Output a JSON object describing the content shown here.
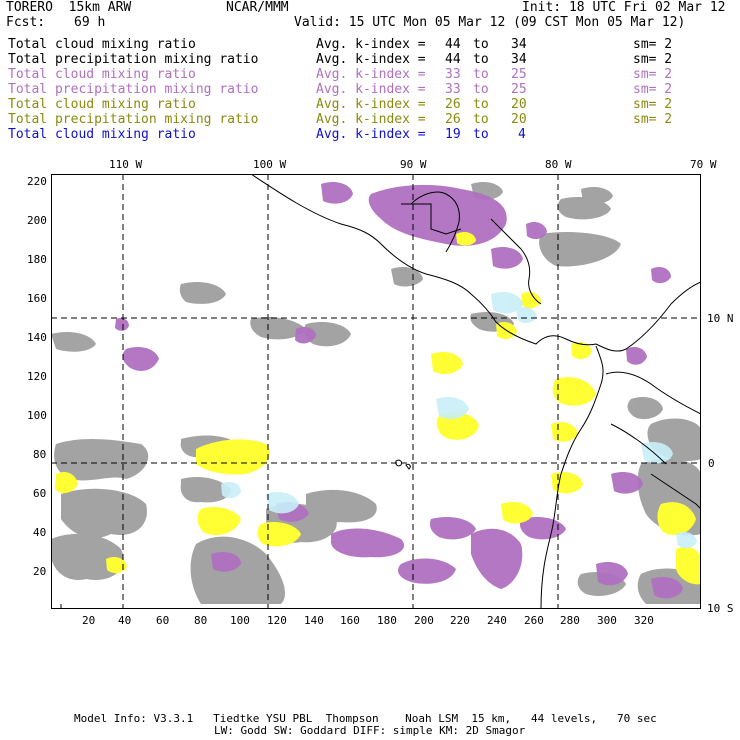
{
  "header": {
    "model": "TORERO  15km ARW",
    "center": "NCAR/MMM",
    "init": "Init: 18 UTC Fri 02 Mar 12",
    "fcst_label": "Fcst:",
    "fcst_value": "69 h",
    "valid": "Valid: 15 UTC Mon 05 Mar 12 (09 CST Mon 05 Mar 12)"
  },
  "legend": [
    {
      "field": "Total cloud mixing ratio",
      "index": "Avg. k-index =",
      "from": "44",
      "to_word": "to",
      "to": "34",
      "sm": "sm= 2",
      "color": "#000000"
    },
    {
      "field": "Total precipitation mixing ratio",
      "index": "Avg. k-index =",
      "from": "44",
      "to_word": "to",
      "to": "34",
      "sm": "sm= 2",
      "color": "#000000"
    },
    {
      "field": "Total cloud mixing ratio",
      "index": "Avg. k-index =",
      "from": "33",
      "to_word": "to",
      "to": "25",
      "sm": "sm= 2",
      "color": "#b070c0"
    },
    {
      "field": "Total precipitation mixing ratio",
      "index": "Avg. k-index =",
      "from": "33",
      "to_word": "to",
      "to": "25",
      "sm": "sm= 2",
      "color": "#b070c0"
    },
    {
      "field": "Total cloud mixing ratio",
      "index": "Avg. k-index =",
      "from": "26",
      "to_word": "to",
      "to": "20",
      "sm": "sm= 2",
      "color": "#8a8a10"
    },
    {
      "field": "Total precipitation mixing ratio",
      "index": "Avg. k-index =",
      "from": "26",
      "to_word": "to",
      "to": "20",
      "sm": "sm= 2",
      "color": "#8a8a10"
    },
    {
      "field": "Total cloud mixing ratio",
      "index": "Avg. k-index =",
      "from": "19",
      "to_word": "to",
      "to": "4",
      "sm": "",
      "color": "#1010d0"
    }
  ],
  "map": {
    "lon_labels": [
      "110 W",
      "100 W",
      "90 W",
      "80 W",
      "70 W"
    ],
    "lat_labels": [
      "10 N",
      "0",
      "10 S"
    ],
    "y_ticks": [
      "220",
      "200",
      "180",
      "160",
      "140",
      "120",
      "100",
      "80",
      "60",
      "40",
      "20"
    ],
    "x_ticks": [
      "20",
      "40",
      "60",
      "80",
      "100",
      "120",
      "140",
      "160",
      "180",
      "200",
      "220",
      "240",
      "260",
      "280",
      "300",
      "320"
    ],
    "colors": {
      "gray_cloud": "#9a9a9a",
      "purple": "#b070c0",
      "yellow": "#ffff33",
      "cyan": "#c8eef8",
      "coast": "#000000"
    }
  },
  "footer": {
    "line1": "Model Info: V3.3.1   Tiedtke YSU PBL  Thompson    Noah LSM  15 km,   44 levels,   70 sec",
    "line2": "LW: Godd SW: Goddard DIFF: simple KM: 2D Smagor"
  }
}
